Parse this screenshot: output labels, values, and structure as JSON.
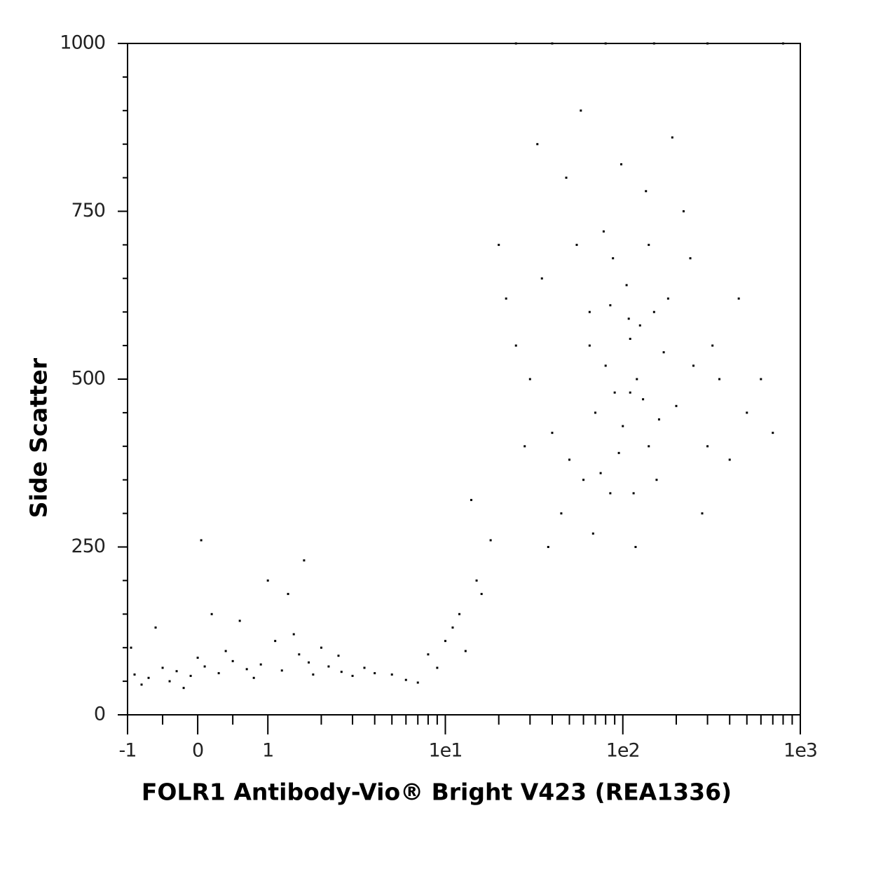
{
  "chart_data": {
    "type": "scatter",
    "x_label": "FOLR1 Antibody-Vio® Bright V423 (REA1336)",
    "y_label": "Side Scatter",
    "xscale": "biexponential",
    "xlim": [
      -1,
      1000
    ],
    "ylim": [
      0,
      1000
    ],
    "xticks": [
      -1,
      0,
      1,
      {
        "value": 10,
        "label": "1e1"
      },
      {
        "value": 100,
        "label": "1e2"
      },
      {
        "value": 1000,
        "label": "1e3"
      }
    ],
    "xminorticks": [
      -0.5,
      0.5,
      2,
      3,
      4,
      5,
      6,
      7,
      8,
      9,
      20,
      30,
      40,
      50,
      60,
      70,
      80,
      90,
      200,
      300,
      400,
      500,
      600,
      700,
      800,
      900
    ],
    "yticks": [
      0,
      250,
      500,
      750,
      1000
    ],
    "yminorticks": [
      50,
      100,
      150,
      200,
      300,
      350,
      400,
      450,
      550,
      600,
      650,
      700,
      800,
      850,
      900,
      950
    ],
    "color": "#000000",
    "x": [
      -0.9,
      -0.7,
      -0.5,
      -0.3,
      -0.1,
      0.1,
      0.3,
      0.5,
      0.7,
      0.9,
      1.2,
      1.5,
      1.8,
      2.2,
      2.6,
      3,
      3.5,
      4,
      -0.8,
      -0.4,
      0,
      0.4,
      0.8,
      1.1,
      1.4,
      1.7,
      2,
      2.5,
      -0.6,
      -0.2,
      0.2,
      0.6,
      1,
      1.3,
      1.6,
      5,
      6,
      7,
      -0.95,
      0.05,
      30,
      40,
      50,
      60,
      70,
      80,
      90,
      100,
      110,
      120,
      130,
      150,
      170,
      200,
      250,
      300,
      400,
      35,
      45,
      55,
      65,
      75,
      85,
      95,
      105,
      115,
      125,
      140,
      160,
      180,
      220,
      280,
      350,
      500,
      25,
      22,
      28,
      33,
      38,
      48,
      58,
      68,
      78,
      88,
      98,
      108,
      118,
      135,
      155,
      190,
      240,
      320,
      450,
      600,
      700,
      65,
      85,
      110,
      140,
      20,
      8,
      10,
      12,
      15,
      18,
      9,
      14,
      11,
      16,
      13,
      25,
      40,
      80,
      150,
      300,
      800
    ],
    "values": [
      60,
      55,
      70,
      65,
      58,
      72,
      62,
      80,
      68,
      75,
      66,
      90,
      60,
      72,
      64,
      58,
      70,
      62,
      45,
      50,
      85,
      95,
      55,
      110,
      120,
      78,
      100,
      88,
      130,
      40,
      150,
      140,
      200,
      180,
      230,
      60,
      52,
      48,
      100,
      260,
      500,
      420,
      380,
      350,
      450,
      520,
      480,
      430,
      560,
      500,
      470,
      600,
      540,
      460,
      520,
      400,
      380,
      650,
      300,
      700,
      550,
      360,
      610,
      390,
      640,
      330,
      580,
      700,
      440,
      620,
      750,
      300,
      500,
      450,
      550,
      620,
      400,
      850,
      250,
      800,
      900,
      270,
      720,
      680,
      820,
      590,
      250,
      780,
      350,
      860,
      680,
      550,
      620,
      500,
      420,
      600,
      330,
      480,
      400,
      700,
      90,
      110,
      150,
      200,
      260,
      70,
      320,
      130,
      180,
      95,
      1000,
      1000,
      1000,
      1000,
      1000,
      1000
    ]
  }
}
